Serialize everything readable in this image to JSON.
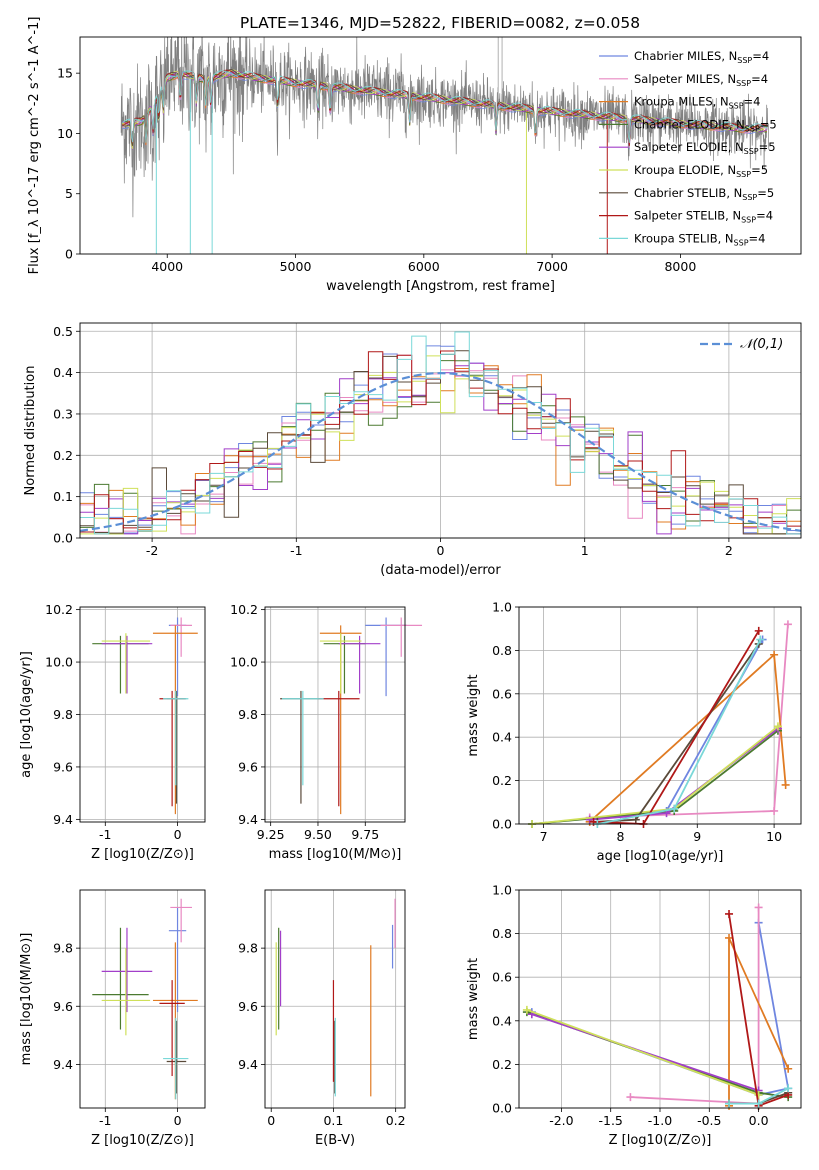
{
  "figure": {
    "title": "PLATE=1346, MJD=52822, FIBERID=0082, z=0.058"
  },
  "series_colors": {
    "Chabrier MILES": "#6f86e0",
    "Salpeter MILES": "#e889c2",
    "Kroupa MILES": "#e07b23",
    "Chabrier ELODIE": "#4b7a30",
    "Salpeter ELODIE": "#a23fc9",
    "Kroupa ELODIE": "#cfe05a",
    "Chabrier STELIB": "#5a4a3a",
    "Salpeter STELIB": "#b01818",
    "Kroupa STELIB": "#7ad8d8",
    "data": "#808080"
  },
  "chart_data": [
    {
      "type": "line",
      "title": "PLATE=1346, MJD=52822, FIBERID=0082, z=0.058",
      "xlabel": "wavelength [Angstrom, rest frame]",
      "ylabel": "Flux [f_λ 10^-17 erg cm^-2 s^-1 A^-1]",
      "xlim": [
        3320,
        8940
      ],
      "ylim": [
        0,
        18
      ],
      "xticks": [
        4000,
        5000,
        6000,
        7000,
        8000
      ],
      "yticks": [
        0,
        5,
        10,
        15
      ],
      "grid": false,
      "legend_placement": "top-right",
      "legend": [
        {
          "name": "Chabrier MILES",
          "nssp": 4
        },
        {
          "name": "Salpeter MILES",
          "nssp": 4
        },
        {
          "name": "Kroupa MILES",
          "nssp": 4
        },
        {
          "name": "Chabrier ELODIE",
          "nssp": 5
        },
        {
          "name": "Salpeter ELODIE",
          "nssp": 5
        },
        {
          "name": "Kroupa ELODIE",
          "nssp": 5
        },
        {
          "name": "Chabrier STELIB",
          "nssp": 5
        },
        {
          "name": "Salpeter STELIB",
          "nssp": 4
        },
        {
          "name": "Kroupa STELIB",
          "nssp": 4
        }
      ],
      "continuum": {
        "x": [
          3650,
          3700,
          3800,
          3900,
          4000,
          4100,
          4200,
          4300,
          4500,
          4700,
          5000,
          5500,
          6000,
          6500,
          7000,
          7500,
          8000,
          8500
        ],
        "y": [
          10.8,
          10.8,
          11.0,
          12.5,
          14.6,
          15.0,
          14.7,
          14.5,
          15.0,
          14.6,
          14.2,
          13.6,
          13.0,
          12.4,
          11.8,
          11.3,
          10.8,
          10.4
        ]
      }
    },
    {
      "type": "bar",
      "xlabel": "(data-model)/error",
      "ylabel": "Normed distribution",
      "xlim": [
        -2.5,
        2.5
      ],
      "ylim": [
        0,
        0.52
      ],
      "xticks": [
        -2,
        -1,
        0,
        1,
        2
      ],
      "yticks": [
        0.0,
        0.1,
        0.2,
        0.3,
        0.4,
        0.5
      ],
      "grid": true,
      "legend_placement": "top-right",
      "legend": [
        "𝒩(0,1)"
      ],
      "bins": 50,
      "bin_width": 0.1
    },
    {
      "type": "scatter",
      "xlabel": "Z [log10(Z/Z⊙)]",
      "ylabel": "age  [log10(age/yr)]",
      "xlim": [
        -1.35,
        0.38
      ],
      "ylim": [
        9.39,
        10.21
      ],
      "xticks": [
        -1,
        0
      ],
      "yticks": [
        9.4,
        9.6,
        9.8,
        10.0,
        10.2
      ]
    },
    {
      "type": "scatter",
      "xlabel": "mass [log10(M/M⊙)]",
      "xlim": [
        9.22,
        9.96
      ],
      "ylim": [
        9.39,
        10.21
      ],
      "xticks": [
        9.25,
        9.5,
        9.75
      ],
      "yticks": [
        9.4,
        9.6,
        9.8,
        10.0,
        10.2
      ]
    },
    {
      "type": "line",
      "xlabel": "age  [log10(age/yr)]",
      "ylabel": "mass weight",
      "xlim": [
        6.68,
        10.35
      ],
      "ylim": [
        0,
        1.0
      ],
      "xticks": [
        7,
        8,
        9,
        10
      ],
      "yticks": [
        0.0,
        0.2,
        0.4,
        0.6,
        0.8,
        1.0
      ],
      "grid": true
    },
    {
      "type": "scatter",
      "xlabel": "Z [log10(Z/Z⊙)]",
      "ylabel": "mass [log10(M/M⊙)]",
      "xlim": [
        -1.35,
        0.38
      ],
      "ylim": [
        9.25,
        10.0
      ],
      "xticks": [
        -1,
        0
      ],
      "yticks": [
        9.4,
        9.6,
        9.8
      ]
    },
    {
      "type": "scatter",
      "xlabel": "E(B-V)",
      "xlim": [
        -0.01,
        0.215
      ],
      "ylim": [
        9.25,
        10.0
      ],
      "xticks": [
        0.0,
        0.1,
        0.2
      ],
      "yticks": [
        9.4,
        9.6,
        9.8
      ]
    },
    {
      "type": "line",
      "xlabel": "Z [log10(Z/Z⊙)]",
      "ylabel": "mass weight",
      "xlim": [
        -2.43,
        0.43
      ],
      "ylim": [
        0,
        1.0
      ],
      "xticks": [
        -2.0,
        -1.5,
        -1.0,
        -0.5,
        0.0
      ],
      "yticks": [
        0.0,
        0.2,
        0.4,
        0.6,
        0.8,
        1.0
      ],
      "grid": true
    }
  ],
  "fits": [
    {
      "name": "Chabrier MILES",
      "Z": [
        -0.12,
        0.12
      ],
      "age": [
        9.87,
        10.16
      ],
      "mass": [
        9.86,
        9.58,
        9.94
      ],
      "ebv": [
        0.195,
        9.73,
        9.88
      ],
      "weights_age": [
        [
          6.85,
          0.0
        ],
        [
          8.6,
          0.06
        ],
        [
          9.85,
          0.85
        ]
      ],
      "weights_Z": [
        [
          -2.3,
          0.44
        ],
        [
          0.0,
          0.06
        ],
        [
          0.3,
          0.09
        ],
        [
          0.0,
          0.85
        ]
      ]
    },
    {
      "name": "Salpeter MILES",
      "Z": [
        -0.1,
        0.2
      ],
      "age": [
        10.02,
        10.16
      ],
      "mass": [
        9.94,
        9.82,
        9.97
      ],
      "ebv": [
        0.199,
        9.8,
        9.97
      ],
      "weights_age": [
        [
          7.6,
          0.03
        ],
        [
          10.0,
          0.06
        ],
        [
          10.18,
          0.92
        ]
      ],
      "weights_Z": [
        [
          -1.3,
          0.05
        ],
        [
          0.0,
          0.02
        ],
        [
          0.0,
          0.92
        ]
      ]
    },
    {
      "name": "Kroupa MILES",
      "Z": [
        -0.34,
        0.28
      ],
      "age": [
        9.42,
        10.13
      ],
      "mass": [
        9.62,
        9.28,
        9.82
      ],
      "ebv": [
        0.16,
        9.29,
        9.81
      ],
      "weights_age": [
        [
          7.6,
          0.01
        ],
        [
          10.0,
          0.78
        ],
        [
          10.15,
          0.18
        ]
      ],
      "weights_Z": [
        [
          -0.3,
          0.01
        ],
        [
          -0.3,
          0.78
        ],
        [
          0.3,
          0.18
        ]
      ]
    },
    {
      "name": "Chabrier ELODIE",
      "Z": [
        -1.18,
        -0.4
      ],
      "age": [
        9.88,
        10.09
      ],
      "mass": [
        9.64,
        9.52,
        9.87
      ],
      "ebv": [
        0.012,
        9.52,
        9.87
      ],
      "weights_age": [
        [
          6.85,
          0.0
        ],
        [
          8.7,
          0.06
        ],
        [
          10.05,
          0.43
        ]
      ],
      "weights_Z": [
        [
          -2.35,
          0.44
        ],
        [
          0.0,
          0.07
        ],
        [
          0.3,
          0.05
        ]
      ]
    },
    {
      "name": "Salpeter ELODIE",
      "Z": [
        -1.05,
        -0.35
      ],
      "age": [
        9.88,
        10.09
      ],
      "mass": [
        9.72,
        9.58,
        9.87
      ],
      "ebv": [
        0.015,
        9.6,
        9.86
      ],
      "weights_age": [
        [
          7.6,
          0.02
        ],
        [
          8.6,
          0.05
        ],
        [
          10.05,
          0.44
        ]
      ],
      "weights_Z": [
        [
          -2.3,
          0.43
        ],
        [
          0.0,
          0.08
        ]
      ]
    },
    {
      "name": "Kroupa ELODIE",
      "Z": [
        -1.05,
        -0.38
      ],
      "age": [
        9.88,
        10.1
      ],
      "mass": [
        9.62,
        9.5,
        9.8
      ],
      "ebv": [
        0.008,
        9.5,
        9.82
      ],
      "weights_age": [
        [
          6.85,
          0.0
        ],
        [
          8.7,
          0.07
        ],
        [
          10.05,
          0.45
        ]
      ],
      "weights_Z": [
        [
          -2.35,
          0.45
        ],
        [
          0.0,
          0.06
        ]
      ]
    },
    {
      "name": "Chabrier STELIB",
      "Z": [
        -0.15,
        0.12
      ],
      "age": [
        9.46,
        9.88
      ],
      "mass": [
        9.41,
        9.3,
        9.55
      ],
      "ebv": [
        0.102,
        9.3,
        9.55
      ],
      "weights_age": [
        [
          7.7,
          0.01
        ],
        [
          8.2,
          0.02
        ],
        [
          9.8,
          0.83
        ]
      ],
      "weights_Z": [
        [
          -0.3,
          0.02
        ],
        [
          0.0,
          0.02
        ],
        [
          0.3,
          0.07
        ]
      ]
    },
    {
      "name": "Salpeter STELIB",
      "Z": [
        -0.25,
        0.1
      ],
      "age": [
        9.45,
        9.88
      ],
      "mass": [
        9.61,
        9.36,
        9.69
      ],
      "ebv": [
        0.1,
        9.34,
        9.69
      ],
      "weights_age": [
        [
          7.65,
          0.01
        ],
        [
          8.3,
          0.0
        ],
        [
          9.8,
          0.89
        ]
      ],
      "weights_Z": [
        [
          -0.3,
          0.89
        ],
        [
          0.0,
          0.01
        ],
        [
          0.3,
          0.06
        ]
      ]
    },
    {
      "name": "Kroupa STELIB",
      "Z": [
        -0.2,
        0.15
      ],
      "age": [
        9.53,
        9.88
      ],
      "mass": [
        9.42,
        9.28,
        9.56
      ],
      "ebv": [
        0.103,
        9.29,
        9.56
      ],
      "weights_age": [
        [
          7.7,
          0.0
        ],
        [
          8.7,
          0.07
        ],
        [
          9.82,
          0.85
        ]
      ],
      "weights_Z": [
        [
          -0.3,
          0.02
        ],
        [
          0.0,
          0.02
        ],
        [
          0.3,
          0.09
        ]
      ]
    }
  ]
}
